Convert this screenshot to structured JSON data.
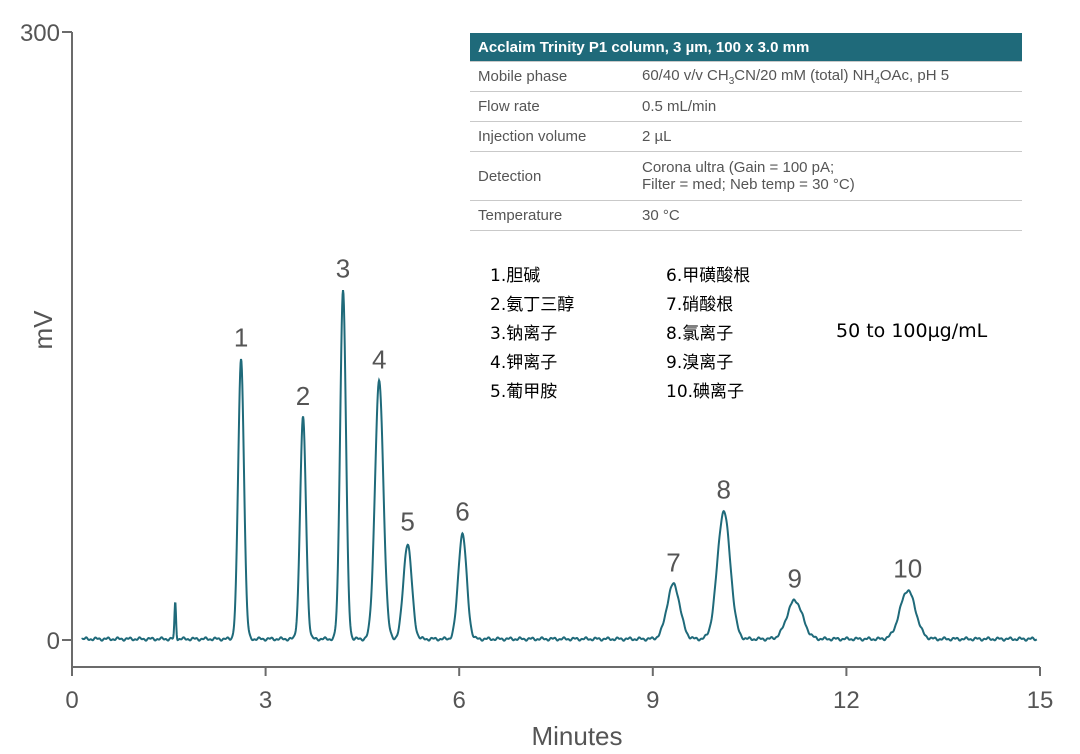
{
  "chart_data": {
    "type": "line",
    "xlabel": "Minutes",
    "ylabel": "mV",
    "xlim": [
      0,
      15
    ],
    "ylim": [
      0,
      300
    ],
    "x_ticks": [
      "0",
      "3",
      "6",
      "9",
      "12",
      "15"
    ],
    "y_ticks": [
      "0",
      "300"
    ],
    "line_color": "#1f6a7a",
    "baseline_start": 0.15,
    "baseline_mv": 0.5,
    "baseline_end": 14.95,
    "injection_spike": {
      "x": 1.6,
      "y": 18
    },
    "peaks": [
      {
        "label": "1",
        "x": 2.62,
        "y": 138
      },
      {
        "label": "2",
        "x": 3.58,
        "y": 109
      },
      {
        "label": "3",
        "x": 4.2,
        "y": 172
      },
      {
        "label": "4",
        "x": 4.76,
        "y": 127
      },
      {
        "label": "5",
        "x": 5.2,
        "y": 47
      },
      {
        "label": "6",
        "x": 6.05,
        "y": 52
      },
      {
        "label": "7",
        "x": 9.32,
        "y": 27
      },
      {
        "label": "8",
        "x": 10.1,
        "y": 63
      },
      {
        "label": "9",
        "x": 11.2,
        "y": 19
      },
      {
        "label": "10",
        "x": 12.95,
        "y": 24
      }
    ]
  },
  "conditions": {
    "title": "Acclaim Trinity P1 column, 3 µm, 100 x 3.0 mm",
    "mobile_phase_label": "Mobile phase",
    "mobile_phase_a": "60/40 v/v CH",
    "mobile_phase_sub1": "3",
    "mobile_phase_b": "CN/20 mM (total) NH",
    "mobile_phase_sub2": "4",
    "mobile_phase_c": "OAc, pH 5",
    "flow_rate_label": "Flow rate",
    "flow_rate_value": "0.5 mL/min",
    "injection_label": "Injection volume",
    "injection_value": "2 µL",
    "detection_label": "Detection",
    "detection_line1": "Corona ultra (Gain = 100 pA;",
    "detection_line2": "Filter = med; Neb temp = 30 °C)",
    "temperature_label": "Temperature",
    "temperature_value": "30 °C"
  },
  "legend": {
    "left": [
      "1.胆碱",
      "2.氨丁三醇",
      "3.钠离子",
      "4.钾离子",
      "5.葡甲胺"
    ],
    "right": [
      "6.甲磺酸根",
      "7.硝酸根",
      "8.氯离子",
      "9.溴离子",
      "10.碘离子"
    ]
  },
  "concentration_note": "50 to 100µg/mL"
}
